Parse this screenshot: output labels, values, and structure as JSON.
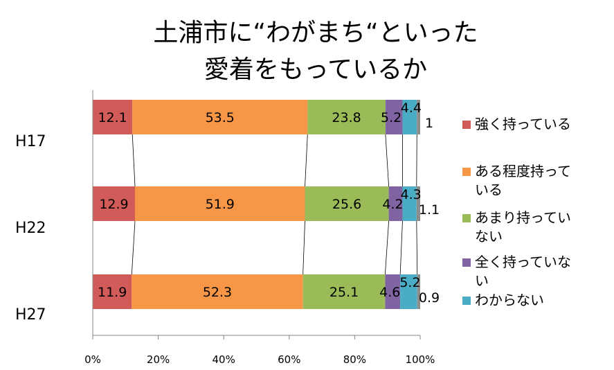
{
  "chart_data": {
    "type": "bar",
    "orientation": "horizontal",
    "stacked": "percent",
    "title_lines": [
      "土浦市に“わがまち“といった",
      "愛着をもっているか"
    ],
    "categories": [
      "H17",
      "H22",
      "H27"
    ],
    "series": [
      {
        "name": "強く持っている",
        "color": "#d05b59",
        "values": [
          12.1,
          12.9,
          11.9
        ]
      },
      {
        "name": "ある程度持っている",
        "color": "#f79646",
        "values": [
          53.5,
          51.9,
          52.3
        ]
      },
      {
        "name": "あまり持っていない",
        "color": "#9bbb59",
        "values": [
          23.8,
          25.6,
          25.1
        ]
      },
      {
        "name": "全く持っていない",
        "color": "#8064a2",
        "values": [
          5.2,
          4.2,
          4.6
        ]
      },
      {
        "name": "わからない",
        "color": "#4bacc6",
        "values": [
          4.4,
          4.3,
          5.2
        ]
      },
      {
        "name": "",
        "color": "#8c8c8c",
        "values": [
          1,
          1.1,
          0.9
        ]
      }
    ],
    "x_ticks": [
      "0%",
      "20%",
      "40%",
      "60%",
      "80%",
      "100%"
    ],
    "xlim": [
      0,
      100
    ],
    "legend_lines": [
      [
        "強く持っている"
      ],
      [
        "ある程度持って",
        "いる"
      ],
      [
        "あまり持ってい",
        "ない"
      ],
      [
        "全く持っていな",
        "い"
      ],
      [
        "わからない"
      ]
    ],
    "legend_position": "right",
    "series_lines": true,
    "grid": false
  }
}
